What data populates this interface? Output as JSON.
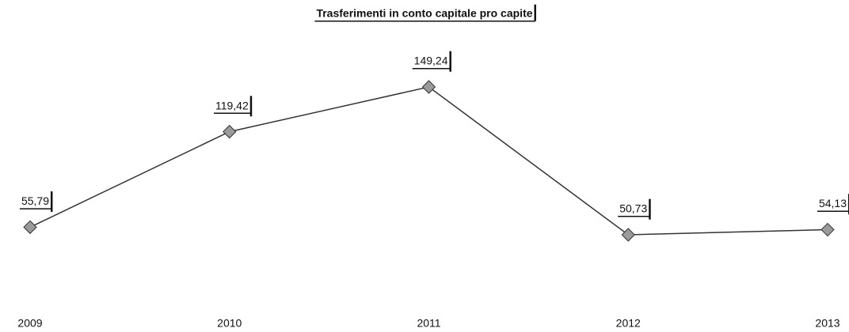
{
  "chart_data": {
    "type": "line",
    "title": "Trasferimenti in conto capitale pro capite",
    "categories": [
      "2009",
      "2010",
      "2011",
      "2012",
      "2013"
    ],
    "series": [
      {
        "name": "Trasferimenti in conto capitale pro capite",
        "color": "#333333",
        "values": [
          55.79,
          119.42,
          149.24,
          50.73,
          54.13
        ],
        "value_labels": [
          "55,79",
          "119,42",
          "149,24",
          "50,73",
          "54,13"
        ]
      }
    ]
  }
}
